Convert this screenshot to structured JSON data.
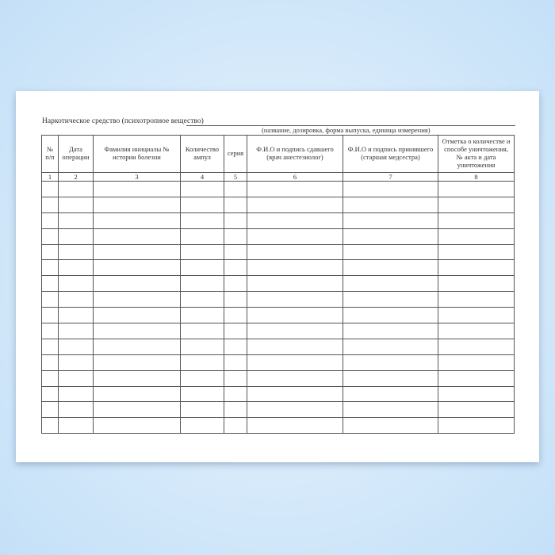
{
  "form": {
    "title": "Наркотическое средство (психотропное вещество)",
    "subtitle": "(название, дозировка, форма выпуска, единица измерения)",
    "columns": [
      {
        "header": "№ п/п",
        "number": "1"
      },
      {
        "header": "Дата операции",
        "number": "2"
      },
      {
        "header": "Фамилия инициалы № истории болезни",
        "number": "3"
      },
      {
        "header": "Количество ампул",
        "number": "4"
      },
      {
        "header": "серия",
        "number": "5"
      },
      {
        "header": "Ф.И.О и подпись сдавшего (врач анестезиолог)",
        "number": "6"
      },
      {
        "header": "Ф.И.О и подпись принявшего (старшая медсестра)",
        "number": "7"
      },
      {
        "header": "Отметка о количестве и способе уничтожения, № акта и дата уничтожения",
        "number": "8"
      }
    ],
    "blank_rows": 16
  },
  "colors": {
    "background": "#d3e8fa",
    "paper": "#ffffff",
    "lines": "#555555"
  }
}
